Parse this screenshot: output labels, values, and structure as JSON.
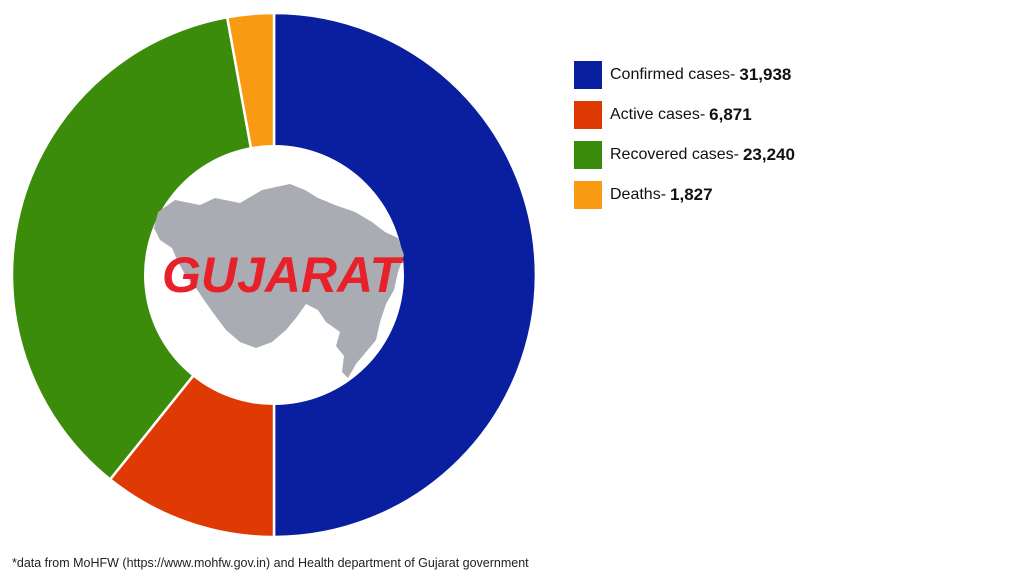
{
  "chart_data": {
    "type": "pie",
    "subtype": "donut",
    "title": "GUJARAT",
    "center_label": "GUJARAT",
    "categories": [
      "Confirmed cases",
      "Active cases",
      "Recovered cases",
      "Deaths"
    ],
    "values": [
      31938,
      6871,
      23240,
      1827
    ],
    "colors": [
      "#0a1fa0",
      "#e03a04",
      "#3a8c0a",
      "#f99b12"
    ],
    "legend_position": "right",
    "start_angle_deg": 0,
    "direction": "clockwise"
  },
  "legend": {
    "items": [
      {
        "label": "Confirmed cases-",
        "value": "31,938",
        "color": "#0a1fa0"
      },
      {
        "label": "Active cases-",
        "value": "6,871",
        "color": "#e03a04"
      },
      {
        "label": "Recovered cases-",
        "value": "23,240",
        "color": "#3a8c0a"
      },
      {
        "label": "Deaths-",
        "value": "1,827",
        "color": "#f99b12"
      }
    ]
  },
  "center": {
    "title": "GUJARAT",
    "title_color": "#e8202a",
    "map_color": "#a9acb2"
  },
  "footnote": "*data from MoHFW (https://www.mohfw.gov.in) and Health department of Gujarat government"
}
